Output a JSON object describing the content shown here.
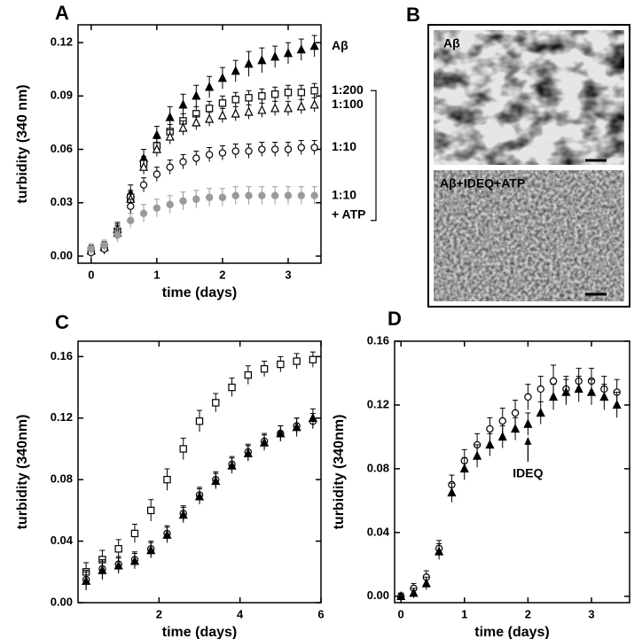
{
  "chart_data": [
    {
      "type": "scatter",
      "panel_label": "A",
      "x_label": "time (days)",
      "y_label": "turbidity (340 nm)",
      "xlim": [
        -0.2,
        3.5
      ],
      "ylim": [
        -0.004,
        0.13
      ],
      "xticks": [
        0,
        1,
        2,
        3
      ],
      "yticks": [
        {
          "value": 0,
          "label": "0.00"
        },
        0.03,
        0.06,
        0.09,
        0.12
      ],
      "x": [
        0,
        0.2,
        0.4,
        0.6,
        0.8,
        1.0,
        1.2,
        1.4,
        1.6,
        1.8,
        2.0,
        2.2,
        2.4,
        2.6,
        2.8,
        3.0,
        3.2,
        3.4
      ],
      "series": [
        {
          "name": "Aβ",
          "marker": "triangle",
          "color": "#000000",
          "values": [
            0.003,
            0.005,
            0.015,
            0.035,
            0.055,
            0.068,
            0.078,
            0.085,
            0.09,
            0.095,
            0.1,
            0.104,
            0.108,
            0.11,
            0.112,
            0.114,
            0.116,
            0.118
          ],
          "errors": [
            0.003,
            0.003,
            0.004,
            0.005,
            0.005,
            0.005,
            0.006,
            0.006,
            0.006,
            0.006,
            0.006,
            0.006,
            0.007,
            0.007,
            0.006,
            0.006,
            0.006,
            0.006
          ]
        },
        {
          "name": "1:200",
          "marker": "square-open",
          "color": "#000000",
          "values": [
            0.003,
            0.005,
            0.014,
            0.033,
            0.052,
            0.062,
            0.07,
            0.076,
            0.08,
            0.083,
            0.086,
            0.088,
            0.089,
            0.09,
            0.091,
            0.092,
            0.092,
            0.093
          ],
          "errors": [
            0.003,
            0.003,
            0.004,
            0.004,
            0.004,
            0.004,
            0.004,
            0.004,
            0.004,
            0.004,
            0.004,
            0.004,
            0.004,
            0.004,
            0.004,
            0.004,
            0.004,
            0.004
          ]
        },
        {
          "name": "1:100",
          "marker": "triangle-open",
          "color": "#000000",
          "values": [
            0.003,
            0.005,
            0.013,
            0.032,
            0.05,
            0.06,
            0.067,
            0.072,
            0.075,
            0.077,
            0.079,
            0.08,
            0.081,
            0.082,
            0.083,
            0.083,
            0.084,
            0.085
          ],
          "errors": [
            0.003,
            0.003,
            0.004,
            0.004,
            0.004,
            0.004,
            0.004,
            0.004,
            0.004,
            0.004,
            0.004,
            0.004,
            0.004,
            0.004,
            0.004,
            0.004,
            0.004,
            0.004
          ]
        },
        {
          "name": "1:10",
          "marker": "circle-open",
          "color": "#000000",
          "values": [
            0.002,
            0.004,
            0.012,
            0.028,
            0.04,
            0.046,
            0.05,
            0.053,
            0.055,
            0.057,
            0.058,
            0.059,
            0.059,
            0.06,
            0.06,
            0.06,
            0.061,
            0.061
          ],
          "errors": [
            0.003,
            0.003,
            0.003,
            0.004,
            0.004,
            0.004,
            0.004,
            0.004,
            0.004,
            0.004,
            0.004,
            0.004,
            0.004,
            0.004,
            0.004,
            0.004,
            0.004,
            0.004
          ]
        },
        {
          "name": "1:10",
          "marker": "circle",
          "color": "#9a9a9a",
          "values": [
            0.004,
            0.006,
            0.012,
            0.02,
            0.024,
            0.027,
            0.029,
            0.031,
            0.032,
            0.033,
            0.033,
            0.034,
            0.034,
            0.034,
            0.034,
            0.034,
            0.034,
            0.034
          ],
          "errors": [
            0.003,
            0.003,
            0.004,
            0.004,
            0.005,
            0.005,
            0.005,
            0.005,
            0.005,
            0.005,
            0.005,
            0.005,
            0.005,
            0.005,
            0.005,
            0.005,
            0.005,
            0.005
          ]
        }
      ],
      "annotations": [
        "+ ATP"
      ]
    },
    {
      "type": "scatter",
      "panel_label": "C",
      "x_label": "time  (days)",
      "y_label": "turbidity (340nm)",
      "xlim": [
        0,
        6
      ],
      "ylim": [
        0,
        0.17
      ],
      "xticks": [
        2,
        4,
        6
      ],
      "yticks": [
        {
          "value": 0,
          "label": "0.00"
        },
        0.04,
        0.08,
        0.12,
        0.16
      ],
      "x": [
        0.2,
        0.6,
        1.0,
        1.4,
        1.8,
        2.2,
        2.6,
        3.0,
        3.4,
        3.8,
        4.2,
        4.6,
        5.0,
        5.4,
        5.8
      ],
      "series": [
        {
          "marker": "square-open",
          "color": "#000000",
          "values": [
            0.02,
            0.028,
            0.035,
            0.045,
            0.06,
            0.08,
            0.1,
            0.118,
            0.13,
            0.14,
            0.148,
            0.152,
            0.155,
            0.157,
            0.158
          ],
          "errors": [
            0.006,
            0.006,
            0.006,
            0.006,
            0.007,
            0.007,
            0.007,
            0.007,
            0.006,
            0.006,
            0.006,
            0.005,
            0.005,
            0.005,
            0.005
          ]
        },
        {
          "marker": "circle-open",
          "color": "#000000",
          "values": [
            0.015,
            0.022,
            0.025,
            0.028,
            0.035,
            0.045,
            0.058,
            0.07,
            0.08,
            0.09,
            0.098,
            0.105,
            0.11,
            0.115,
            0.118
          ],
          "errors": [
            0.006,
            0.006,
            0.005,
            0.005,
            0.005,
            0.005,
            0.005,
            0.005,
            0.005,
            0.005,
            0.005,
            0.005,
            0.005,
            0.005,
            0.005
          ]
        },
        {
          "marker": "triangle",
          "color": "#000000",
          "values": [
            0.014,
            0.021,
            0.024,
            0.027,
            0.034,
            0.044,
            0.057,
            0.069,
            0.079,
            0.089,
            0.097,
            0.104,
            0.11,
            0.114,
            0.12
          ],
          "errors": [
            0.006,
            0.006,
            0.005,
            0.005,
            0.005,
            0.005,
            0.005,
            0.005,
            0.005,
            0.005,
            0.005,
            0.005,
            0.005,
            0.006,
            0.006
          ]
        }
      ]
    },
    {
      "type": "scatter",
      "panel_label": "D",
      "x_label": "time (days)",
      "y_label": "turbidity (340nm)",
      "xlim": [
        -0.1,
        3.6
      ],
      "ylim": [
        -0.004,
        0.16
      ],
      "xticks": [
        0,
        1,
        2,
        3
      ],
      "yticks": [
        {
          "value": 0,
          "label": "0.00"
        },
        0.04,
        0.08,
        0.12,
        0.16
      ],
      "x": [
        0,
        0.2,
        0.4,
        0.6,
        0.8,
        1.0,
        1.2,
        1.4,
        1.6,
        1.8,
        2.0,
        2.2,
        2.4,
        2.6,
        2.8,
        3.0,
        3.2,
        3.4
      ],
      "series": [
        {
          "marker": "circle-open",
          "color": "#000000",
          "values": [
            0,
            0.005,
            0.012,
            0.03,
            0.07,
            0.085,
            0.095,
            0.105,
            0.11,
            0.115,
            0.125,
            0.13,
            0.135,
            0.13,
            0.135,
            0.135,
            0.13,
            0.128
          ],
          "errors": [
            0.002,
            0.003,
            0.004,
            0.005,
            0.006,
            0.007,
            0.007,
            0.007,
            0.008,
            0.008,
            0.008,
            0.008,
            0.01,
            0.008,
            0.008,
            0.008,
            0.008,
            0.008
          ]
        },
        {
          "marker": "triangle",
          "color": "#000000",
          "values": [
            0,
            0.002,
            0.008,
            0.028,
            0.065,
            0.08,
            0.088,
            0.095,
            0.1,
            0.105,
            0.108,
            0.115,
            0.125,
            0.128,
            0.13,
            0.128,
            0.125,
            0.12
          ],
          "errors": [
            0.002,
            0.003,
            0.004,
            0.005,
            0.006,
            0.007,
            0.007,
            0.007,
            0.007,
            0.007,
            0.007,
            0.007,
            0.008,
            0.008,
            0.008,
            0.008,
            0.008,
            0.008
          ]
        }
      ],
      "annotations": [
        {
          "text": "IDEQ",
          "x": 2,
          "y": 0.1
        }
      ]
    }
  ],
  "panel_b": {
    "panel_label": "B",
    "top_label": "Aβ",
    "bottom_label": "Aβ+IDEQ+ATP"
  }
}
